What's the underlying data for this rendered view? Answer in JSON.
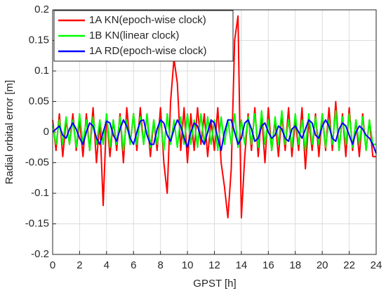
{
  "chart_data": {
    "type": "line",
    "xlabel": "GPST [h]",
    "ylabel": "Radial orbital error [m]",
    "x": [
      0,
      0.25,
      0.5,
      0.75,
      1,
      1.25,
      1.5,
      1.75,
      2,
      2.25,
      2.5,
      2.75,
      3,
      3.25,
      3.5,
      3.75,
      4,
      4.25,
      4.5,
      4.75,
      5,
      5.25,
      5.5,
      5.75,
      6,
      6.25,
      6.5,
      6.75,
      7,
      7.25,
      7.5,
      7.75,
      8,
      8.25,
      8.5,
      8.75,
      9,
      9.25,
      9.5,
      9.75,
      10,
      10.25,
      10.5,
      10.75,
      11,
      11.25,
      11.5,
      11.75,
      12,
      12.25,
      12.5,
      12.75,
      13,
      13.25,
      13.5,
      13.75,
      14,
      14.25,
      14.5,
      14.75,
      15,
      15.25,
      15.5,
      15.75,
      16,
      16.25,
      16.5,
      16.75,
      17,
      17.25,
      17.5,
      17.75,
      18,
      18.25,
      18.5,
      18.75,
      19,
      19.25,
      19.5,
      19.75,
      20,
      20.25,
      20.5,
      20.75,
      21,
      21.25,
      21.5,
      21.75,
      22,
      22.25,
      22.5,
      22.75,
      23,
      23.25,
      23.5,
      23.75,
      24
    ],
    "series": [
      {
        "name": "1A KN(epoch-wise clock)",
        "color": "#ff0000",
        "values": [
          0.02,
          -0.03,
          0.03,
          -0.04,
          0.02,
          -0.02,
          0.03,
          -0.03,
          0.02,
          -0.04,
          0.03,
          -0.03,
          0.04,
          -0.05,
          0.02,
          -0.12,
          0.03,
          -0.04,
          0.02,
          -0.03,
          0.03,
          -0.05,
          0.04,
          -0.02,
          0.03,
          -0.03,
          0.04,
          -0.02,
          0.03,
          -0.04,
          0.02,
          -0.03,
          0.04,
          -0.05,
          -0.1,
          0.05,
          0.12,
          0.08,
          -0.03,
          0.04,
          -0.05,
          0.03,
          -0.03,
          0.04,
          -0.02,
          0.03,
          -0.04,
          0.02,
          -0.03,
          0.04,
          -0.05,
          -0.09,
          -0.14,
          -0.06,
          0.15,
          0.19,
          -0.14,
          -0.04,
          0.03,
          -0.03,
          0.04,
          -0.04,
          0.03,
          -0.05,
          0.04,
          -0.03,
          0.02,
          -0.04,
          0.03,
          -0.03,
          0.04,
          -0.04,
          0.02,
          -0.03,
          0.04,
          -0.06,
          0.02,
          -0.03,
          0.03,
          -0.04,
          0.03,
          -0.03,
          0.04,
          -0.03,
          0.05,
          -0.03,
          0.03,
          -0.04,
          0.04,
          -0.03,
          0.02,
          -0.04,
          0.03,
          -0.03,
          0.02,
          -0.04,
          -0.04
        ]
      },
      {
        "name": "1B KN(linear clock)",
        "color": "#00ff00",
        "values": [
          0.01,
          -0.02,
          0.02,
          -0.02,
          0.025,
          -0.02,
          0.02,
          -0.025,
          0.03,
          -0.02,
          0.02,
          -0.03,
          0.025,
          -0.02,
          0.02,
          -0.02,
          0.03,
          -0.025,
          0.02,
          -0.02,
          0.025,
          -0.03,
          0.02,
          -0.02,
          0.03,
          -0.02,
          0.025,
          -0.02,
          0.03,
          -0.025,
          0.02,
          -0.02,
          0.02,
          -0.03,
          0.03,
          -0.02,
          0.02,
          -0.025,
          0.025,
          -0.02,
          0.03,
          -0.02,
          0.02,
          -0.025,
          0.03,
          -0.02,
          0.025,
          -0.02,
          0.02,
          -0.03,
          0.025,
          -0.02,
          0.02,
          -0.02,
          0.03,
          -0.025,
          0.02,
          -0.02,
          0.025,
          -0.02,
          0.03,
          -0.025,
          0.035,
          -0.02,
          0.02,
          -0.03,
          0.025,
          -0.02,
          0.035,
          -0.02,
          0.02,
          -0.025,
          0.03,
          -0.02,
          0.02,
          -0.03,
          0.03,
          -0.02,
          0.025,
          -0.02,
          0.03,
          -0.025,
          0.02,
          -0.02,
          0.035,
          -0.03,
          0.025,
          -0.02,
          0.03,
          -0.025,
          0.02,
          -0.02,
          0.025,
          -0.03,
          0.02,
          -0.02,
          -0.02
        ]
      },
      {
        "name": "1A RD(epoch-wise clock)",
        "color": "#0000ff",
        "values": [
          0,
          0.005,
          0.01,
          -0.005,
          -0.01,
          0.005,
          0.015,
          0.005,
          -0.01,
          -0.02,
          0,
          0.015,
          0.01,
          -0.01,
          -0.02,
          0,
          0.018,
          0.015,
          -0.005,
          -0.015,
          0.005,
          0.02,
          0.01,
          -0.01,
          -0.02,
          0,
          0.018,
          0.02,
          -0.005,
          -0.02,
          -0.02,
          0.005,
          0.02,
          0.015,
          -0.005,
          -0.015,
          0.005,
          0.02,
          0.01,
          -0.01,
          -0.025,
          0,
          0.015,
          0.01,
          -0.01,
          -0.02,
          0,
          0.02,
          0.015,
          -0.01,
          -0.03,
          0,
          0.02,
          0.02,
          0,
          -0.02,
          -0.01,
          0.015,
          0.02,
          0.005,
          -0.015,
          -0.01,
          0.01,
          0.015,
          0,
          -0.01,
          -0.005,
          0.01,
          0.005,
          -0.01,
          -0.015,
          0.005,
          0.01,
          0,
          -0.01,
          0.005,
          0.02,
          0.015,
          -0.005,
          -0.01,
          0.01,
          0.02,
          0.01,
          -0.01,
          -0.015,
          0.005,
          0.015,
          0.01,
          -0.005,
          -0.02,
          0,
          0.01,
          0.005,
          -0.005,
          -0.01,
          -0.02,
          -0.035
        ]
      }
    ],
    "xlim": [
      0,
      24
    ],
    "xticks": [
      0,
      2,
      4,
      6,
      8,
      10,
      12,
      14,
      16,
      18,
      20,
      22,
      24
    ],
    "ylim": [
      -0.2,
      0.2
    ],
    "yticks": [
      -0.2,
      -0.15,
      -0.1,
      -0.05,
      0,
      0.05,
      0.1,
      0.15,
      0.2
    ],
    "grid": true,
    "legend": "upper left"
  }
}
